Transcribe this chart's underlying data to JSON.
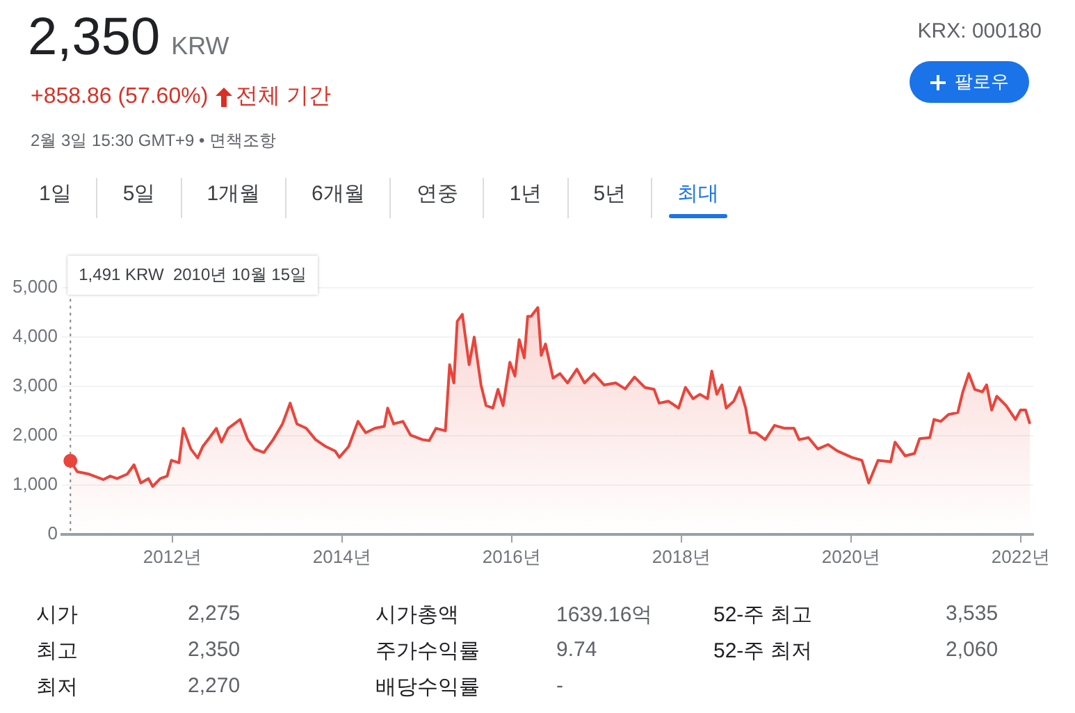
{
  "chart_data": {
    "type": "area",
    "title": "2,350",
    "subtitle": "+858.86 (57.60%)",
    "annotations": [
      "KRW",
      "전체 기간",
      "KRX: 000180",
      "2월 3일 15:30 GMT+9 • 면책조항",
      "팔로우",
      "1일",
      "5일",
      "1개월",
      "6개월",
      "연중",
      "1년",
      "5년",
      "최대",
      "시가",
      "2,275",
      "시가총액",
      "1639.16억",
      "52-주 최고",
      "3,535",
      "최고",
      "2,350",
      "주가수익률",
      "9.74",
      "52-주 최저",
      "2,060",
      "최저",
      "2,270",
      "배당수익률",
      "-",
      "1,491 KRW  2010년 10월 15일"
    ],
    "x": [
      2010.8,
      2010.88,
      2011.02,
      2011.19,
      2011.27,
      2011.35,
      2011.47,
      2011.55,
      2011.63,
      2011.72,
      2011.77,
      2011.86,
      2011.94,
      2011.99,
      2012.08,
      2012.13,
      2012.22,
      2012.3,
      2012.36,
      2012.44,
      2012.52,
      2012.58,
      2012.66,
      2012.8,
      2012.89,
      2012.97,
      2013.08,
      2013.19,
      2013.3,
      2013.39,
      2013.47,
      2013.58,
      2013.69,
      2013.81,
      2013.92,
      2013.97,
      2014.08,
      2014.19,
      2014.28,
      2014.39,
      2014.5,
      2014.54,
      2014.61,
      2014.72,
      2014.81,
      2014.95,
      2015.03,
      2015.11,
      2015.22,
      2015.27,
      2015.32,
      2015.36,
      2015.42,
      2015.5,
      2015.56,
      2015.64,
      2015.7,
      2015.78,
      2015.84,
      2015.9,
      2015.98,
      2016.04,
      2016.09,
      2016.15,
      2016.19,
      2016.23,
      2016.31,
      2016.35,
      2016.4,
      2016.49,
      2016.57,
      2016.66,
      2016.77,
      2016.86,
      2016.97,
      2017.09,
      2017.23,
      2017.34,
      2017.45,
      2017.57,
      2017.68,
      2017.74,
      2017.85,
      2017.97,
      2018.05,
      2018.14,
      2018.22,
      2018.31,
      2018.36,
      2018.42,
      2018.48,
      2018.53,
      2018.62,
      2018.69,
      2018.76,
      2018.81,
      2018.88,
      2018.99,
      2019.1,
      2019.22,
      2019.33,
      2019.39,
      2019.5,
      2019.61,
      2019.73,
      2019.84,
      2020.01,
      2020.13,
      2020.21,
      2020.32,
      2020.47,
      2020.52,
      2020.64,
      2020.75,
      2020.81,
      2020.93,
      2020.98,
      2021.06,
      2021.15,
      2021.26,
      2021.32,
      2021.39,
      2021.46,
      2021.55,
      2021.6,
      2021.66,
      2021.72,
      2021.83,
      2021.94,
      2022.0,
      2022.06,
      2022.11
    ],
    "series": [
      {
        "color": "#e8453c",
        "values": [
          1491,
          1270,
          1220,
          1110,
          1180,
          1130,
          1220,
          1410,
          1040,
          1130,
          970,
          1130,
          1180,
          1500,
          1450,
          2150,
          1730,
          1550,
          1780,
          1960,
          2150,
          1870,
          2150,
          2330,
          1920,
          1730,
          1660,
          1920,
          2240,
          2660,
          2240,
          2150,
          1920,
          1780,
          1690,
          1560,
          1780,
          2290,
          2060,
          2150,
          2190,
          2560,
          2240,
          2290,
          2010,
          1920,
          1900,
          2150,
          2100,
          3440,
          3070,
          4320,
          4460,
          3440,
          4000,
          3030,
          2610,
          2560,
          2940,
          2610,
          3490,
          3210,
          3950,
          3580,
          4420,
          4420,
          4600,
          3630,
          3860,
          3170,
          3260,
          3070,
          3350,
          3070,
          3260,
          3030,
          3070,
          2950,
          3190,
          2980,
          2940,
          2660,
          2700,
          2560,
          2980,
          2750,
          2840,
          2750,
          3310,
          2840,
          3030,
          2560,
          2700,
          2980,
          2560,
          2060,
          2060,
          1920,
          2210,
          2150,
          2150,
          1920,
          1960,
          1730,
          1820,
          1690,
          1560,
          1500,
          1040,
          1500,
          1470,
          1870,
          1590,
          1640,
          1940,
          1960,
          2330,
          2290,
          2430,
          2470,
          2890,
          3260,
          2940,
          2890,
          3030,
          2520,
          2800,
          2610,
          2330,
          2520,
          2520,
          2240
        ]
      }
    ],
    "xlim": [
      2010.7,
      2022.15
    ],
    "xticks": [
      {
        "value": 2012,
        "label": "2012년"
      },
      {
        "value": 2014,
        "label": "2014년"
      },
      {
        "value": 2016,
        "label": "2016년"
      },
      {
        "value": 2018,
        "label": "2018년"
      },
      {
        "value": 2020,
        "label": "2020년"
      },
      {
        "value": 2022,
        "label": "2022년"
      }
    ],
    "ylim": [
      0,
      5200
    ],
    "yticks": [
      0,
      {
        "value": 1000,
        "label": "1,000"
      },
      {
        "value": 2000,
        "label": "2,000"
      },
      {
        "value": 3000,
        "label": "3,000"
      },
      {
        "value": 4000,
        "label": "4,000"
      },
      {
        "value": 5000,
        "label": "5,000"
      }
    ],
    "ref_lines": [
      {
        "axis": "x",
        "value": 2010.8,
        "line_style": "dotted",
        "color": "#888888"
      }
    ],
    "grid": "y",
    "legend": false,
    "marker": "none",
    "line_style": "solid"
  }
}
